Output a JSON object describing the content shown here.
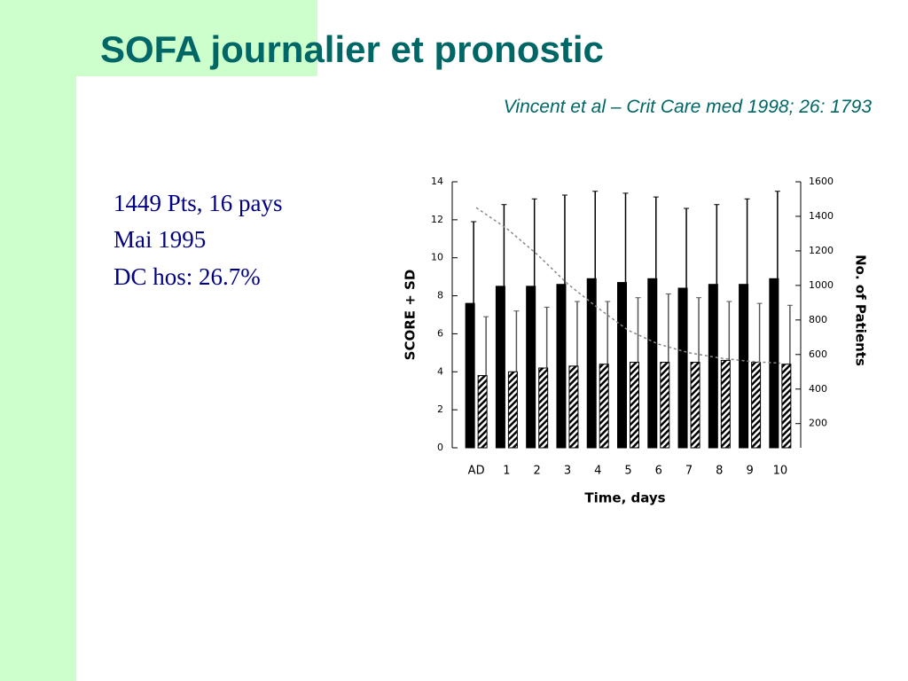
{
  "title": "SOFA journalier et pronostic",
  "subtitle": "Vincent et al – Crit Care med 1998; 26: 1793",
  "notes": [
    "1449 Pts, 16 pays",
    "Mai 1995",
    "DC hos: 26.7%"
  ],
  "chart_data": {
    "type": "bar",
    "categories": [
      "AD",
      "1",
      "2",
      "3",
      "4",
      "5",
      "6",
      "7",
      "8",
      "9",
      "10"
    ],
    "series": [
      {
        "color": "#000000",
        "values": [
          7.6,
          8.5,
          8.5,
          8.6,
          8.9,
          8.7,
          8.9,
          8.4,
          8.6,
          8.6,
          8.9
        ],
        "errors": [
          4.3,
          4.3,
          4.6,
          4.7,
          4.6,
          4.7,
          4.3,
          4.2,
          4.2,
          4.5,
          4.6
        ]
      },
      {
        "color": "#000000",
        "pattern": "hatch",
        "values": [
          3.8,
          4.0,
          4.2,
          4.3,
          4.4,
          4.5,
          4.5,
          4.5,
          4.6,
          4.5,
          4.4
        ],
        "errors": [
          3.1,
          3.2,
          3.2,
          3.4,
          3.3,
          3.4,
          3.6,
          3.4,
          3.1,
          3.1,
          3.1
        ]
      },
      {
        "type": "line",
        "axis": "y2",
        "color": "#888888",
        "dashed": true,
        "values": [
          1450,
          1330,
          1180,
          1010,
          870,
          740,
          660,
          610,
          580,
          560,
          550
        ]
      }
    ],
    "xlabel": "Time, days",
    "ylabel": "SCORE + SD",
    "y2label": "No. of Patients",
    "ylim": [
      0,
      14
    ],
    "yticks": [
      0,
      2,
      4,
      6,
      8,
      10,
      12,
      14
    ],
    "y2lim": [
      60,
      1600
    ],
    "y2ticks": [
      200,
      400,
      600,
      800,
      1000,
      1200,
      1400,
      1600
    ]
  }
}
